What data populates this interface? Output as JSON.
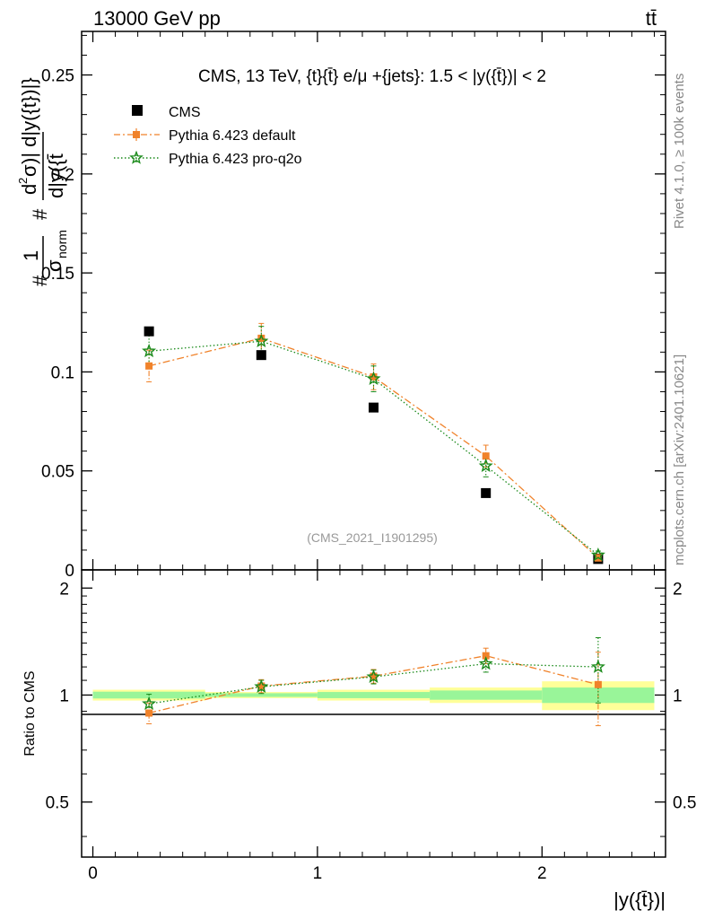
{
  "header": {
    "beam_label": "13000 GeV pp",
    "process_label": "tt̄"
  },
  "side_text": {
    "rivet": "Rivet 4.1.0, ≥ 100k events",
    "mcplots": "mcplots.cern.ch [arXiv:2401.10621]"
  },
  "chart_data": [
    {
      "type": "scatter",
      "panel": "main",
      "title": "CMS, 13 TeV, {t}{t̄} e/μ +{jets}: 1.5 < |y({t̄})| < 2",
      "watermark": "(CMS_2021_I1901295)",
      "ylabel_parts": [
        "#",
        "1",
        "σ",
        "norm",
        "#",
        "d",
        "2",
        "σ",
        ")| d|y({t})|}",
        "d|y({t̄"
      ],
      "xlim": [
        -0.05,
        2.55
      ],
      "ylim": [
        0,
        0.272
      ],
      "y_ticks": [
        0,
        0.05,
        0.1,
        0.15,
        0.2,
        0.25
      ],
      "y_tick_labels": [
        "0",
        "0.05",
        "0.1",
        "0.15",
        "0.2",
        "0.25"
      ],
      "x": [
        0.25,
        0.75,
        1.25,
        1.75,
        2.25
      ],
      "legend_position": "top-left",
      "series": [
        {
          "name": "CMS",
          "color": "#000000",
          "marker": "square",
          "line": "none",
          "values": [
            0.1205,
            0.1085,
            0.082,
            0.0388,
            0.0055
          ],
          "errors": [
            0.0,
            0.0,
            0.0,
            0.0,
            0.0
          ]
        },
        {
          "name": "Pythia 6.423 default",
          "color": "#f0822a",
          "marker": "square-small",
          "line": "dashdot",
          "values": [
            0.103,
            0.117,
            0.0975,
            0.0575,
            0.006
          ],
          "errors": [
            0.008,
            0.0075,
            0.0065,
            0.0055,
            0.002
          ]
        },
        {
          "name": "Pythia 6.423 pro-q2o",
          "color": "#1a8a1a",
          "marker": "star",
          "line": "dotted",
          "values": [
            0.1105,
            0.1155,
            0.0965,
            0.0525,
            0.0075
          ],
          "errors": [
            0.008,
            0.0075,
            0.0065,
            0.0055,
            0.002
          ]
        }
      ]
    },
    {
      "type": "scatter",
      "panel": "ratio",
      "ylabel": "Ratio to CMS",
      "xlabel": "|y({t̄})|",
      "xlim": [
        -0.05,
        2.55
      ],
      "ylim": [
        0.35,
        2.25
      ],
      "y_ticks": [
        0.5,
        1,
        2
      ],
      "y_tick_labels": [
        "0.5",
        "1",
        "2"
      ],
      "x_ticks": [
        0,
        1,
        2
      ],
      "x_tick_labels": [
        "0",
        "1",
        "2"
      ],
      "x": [
        0.25,
        0.75,
        1.25,
        1.75,
        2.25
      ],
      "bands": {
        "edges": [
          0,
          0.5,
          1.0,
          1.5,
          2.0,
          2.5
        ],
        "yellow_halfwidth": [
          0.035,
          0.02,
          0.035,
          0.05,
          0.093
        ],
        "green_halfwidth": [
          0.022,
          0.012,
          0.02,
          0.03,
          0.05
        ],
        "yellow_color": "#ffff99",
        "green_color": "#99f599"
      },
      "series": [
        {
          "name": "Pythia 6.423 default",
          "color": "#f0822a",
          "values": [
            0.89,
            1.06,
            1.13,
            1.29,
            1.07
          ],
          "errors": [
            0.06,
            0.045,
            0.05,
            0.065,
            0.25
          ]
        },
        {
          "name": "Pythia 6.423 pro-q2o",
          "color": "#1a8a1a",
          "values": [
            0.945,
            1.055,
            1.125,
            1.225,
            1.2
          ],
          "errors": [
            0.06,
            0.045,
            0.05,
            0.065,
            0.25
          ]
        }
      ]
    }
  ]
}
